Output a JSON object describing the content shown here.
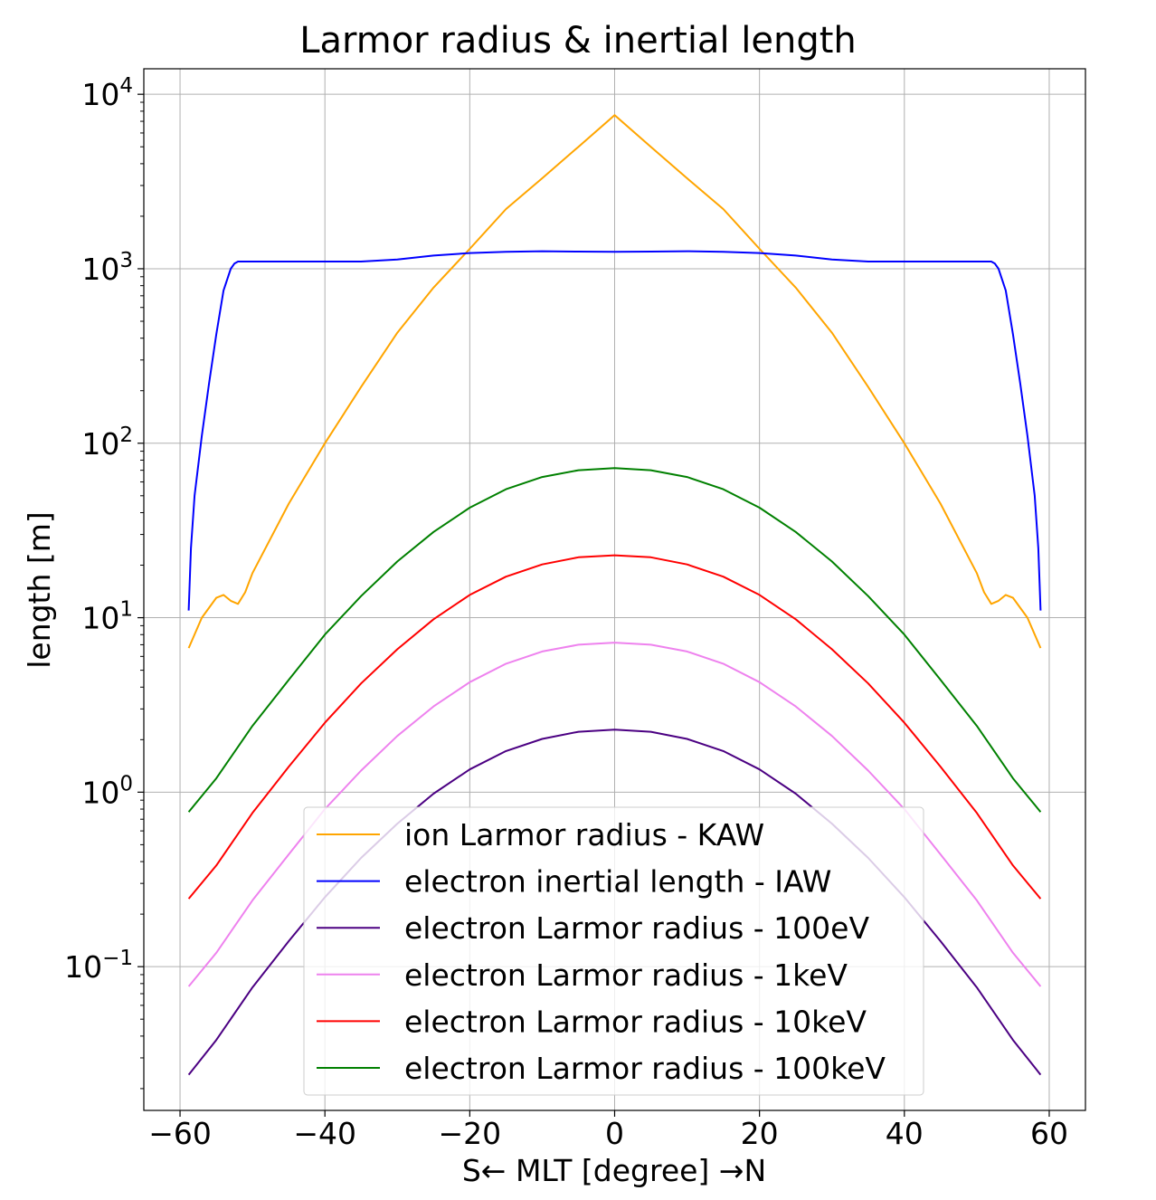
{
  "chart_data": {
    "type": "line",
    "title": "Larmor radius & inertial length",
    "xlabel": "S← MLT [degree] →N",
    "ylabel": "length [m]",
    "xlim": [
      -65,
      65
    ],
    "ylim": [
      0.015,
      14000
    ],
    "yscale": "log",
    "grid": true,
    "legend_position": "lower-center",
    "x_ticks": [
      -60,
      -40,
      -20,
      0,
      20,
      40,
      60
    ],
    "x_tick_labels": [
      "−60",
      "−40",
      "−20",
      "0",
      "20",
      "40",
      "60"
    ],
    "y_ticks": [
      {
        "value": 0.1,
        "base": "10",
        "exp": "−1"
      },
      {
        "value": 1,
        "base": "10",
        "exp": "0"
      },
      {
        "value": 10,
        "base": "10",
        "exp": "1"
      },
      {
        "value": 100,
        "base": "10",
        "exp": "2"
      },
      {
        "value": 1000,
        "base": "10",
        "exp": "3"
      },
      {
        "value": 10000,
        "base": "10",
        "exp": "4"
      }
    ],
    "series": [
      {
        "name": "ion Larmor radius - KAW",
        "color": "#ffa500",
        "x": [
          -58.8,
          -57,
          -55,
          -54,
          -53,
          -52,
          -51,
          -50,
          -45,
          -40,
          -35,
          -30,
          -25,
          -20,
          -15,
          -10,
          -5,
          0,
          5,
          10,
          15,
          20,
          25,
          30,
          35,
          40,
          45,
          50,
          51,
          52,
          53,
          54,
          55,
          57,
          58.8
        ],
        "y": [
          6.7,
          10,
          13,
          13.5,
          12.5,
          12,
          14,
          18,
          45,
          100,
          210,
          430,
          780,
          1300,
          2200,
          3300,
          5000,
          7600,
          5000,
          3300,
          2200,
          1300,
          780,
          430,
          210,
          100,
          45,
          18,
          14,
          12,
          12.5,
          13.5,
          13,
          10,
          6.7
        ]
      },
      {
        "name": "electron inertial length - IAW",
        "color": "#0000ff",
        "x": [
          -58.8,
          -58.5,
          -58,
          -57,
          -56,
          -55,
          -54,
          -53,
          -52.5,
          -52,
          -50,
          -45,
          -40,
          -35,
          -30,
          -25,
          -20,
          -15,
          -10,
          -5,
          0,
          5,
          10,
          15,
          20,
          25,
          30,
          35,
          40,
          45,
          50,
          52,
          52.5,
          53,
          54,
          55,
          56,
          57,
          58,
          58.5,
          58.8
        ],
        "y": [
          11,
          25,
          50,
          110,
          220,
          420,
          750,
          1000,
          1070,
          1100,
          1100,
          1100,
          1100,
          1100,
          1130,
          1190,
          1230,
          1250,
          1260,
          1255,
          1250,
          1255,
          1260,
          1250,
          1230,
          1190,
          1130,
          1100,
          1100,
          1100,
          1100,
          1100,
          1070,
          1000,
          750,
          420,
          220,
          110,
          50,
          25,
          11
        ]
      },
      {
        "name": "electron Larmor radius - 100eV",
        "color": "#4b0082",
        "x": [
          -58.8,
          -55,
          -50,
          -45,
          -40,
          -35,
          -30,
          -25,
          -20,
          -15,
          -10,
          -5,
          0,
          5,
          10,
          15,
          20,
          25,
          30,
          35,
          40,
          45,
          50,
          55,
          58.8
        ],
        "y": [
          0.024,
          0.038,
          0.076,
          0.14,
          0.25,
          0.42,
          0.66,
          0.98,
          1.35,
          1.72,
          2.02,
          2.22,
          2.28,
          2.22,
          2.02,
          1.72,
          1.35,
          0.98,
          0.66,
          0.42,
          0.25,
          0.14,
          0.076,
          0.038,
          0.024
        ]
      },
      {
        "name": "electron Larmor radius - 1keV",
        "color": "#ee82ee",
        "x": [
          -58.8,
          -55,
          -50,
          -45,
          -40,
          -35,
          -30,
          -25,
          -20,
          -15,
          -10,
          -5,
          0,
          5,
          10,
          15,
          20,
          25,
          30,
          35,
          40,
          45,
          50,
          55,
          58.8
        ],
        "y": [
          0.077,
          0.12,
          0.24,
          0.44,
          0.8,
          1.33,
          2.1,
          3.1,
          4.27,
          5.45,
          6.4,
          7.0,
          7.2,
          7.0,
          6.4,
          5.45,
          4.27,
          3.1,
          2.1,
          1.33,
          0.8,
          0.44,
          0.24,
          0.12,
          0.077
        ]
      },
      {
        "name": "electron Larmor radius - 10keV",
        "color": "#ff0000",
        "x": [
          -58.8,
          -55,
          -50,
          -45,
          -40,
          -35,
          -30,
          -25,
          -20,
          -15,
          -10,
          -5,
          0,
          5,
          10,
          15,
          20,
          25,
          30,
          35,
          40,
          45,
          50,
          55,
          58.8
        ],
        "y": [
          0.245,
          0.38,
          0.76,
          1.4,
          2.5,
          4.2,
          6.6,
          9.8,
          13.5,
          17.2,
          20.2,
          22.2,
          22.8,
          22.2,
          20.2,
          17.2,
          13.5,
          9.8,
          6.6,
          4.2,
          2.5,
          1.4,
          0.76,
          0.38,
          0.245
        ]
      },
      {
        "name": "electron Larmor radius - 100keV",
        "color": "#008000",
        "x": [
          -58.8,
          -55,
          -50,
          -45,
          -40,
          -35,
          -30,
          -25,
          -20,
          -15,
          -10,
          -5,
          0,
          5,
          10,
          15,
          20,
          25,
          30,
          35,
          40,
          45,
          50,
          55,
          58.8
        ],
        "y": [
          0.77,
          1.2,
          2.4,
          4.4,
          8.0,
          13.3,
          21,
          31,
          42.7,
          54.5,
          64,
          70,
          72,
          70,
          64,
          54.5,
          42.7,
          31,
          21,
          13.3,
          8.0,
          4.4,
          2.4,
          1.2,
          0.77
        ]
      }
    ]
  }
}
